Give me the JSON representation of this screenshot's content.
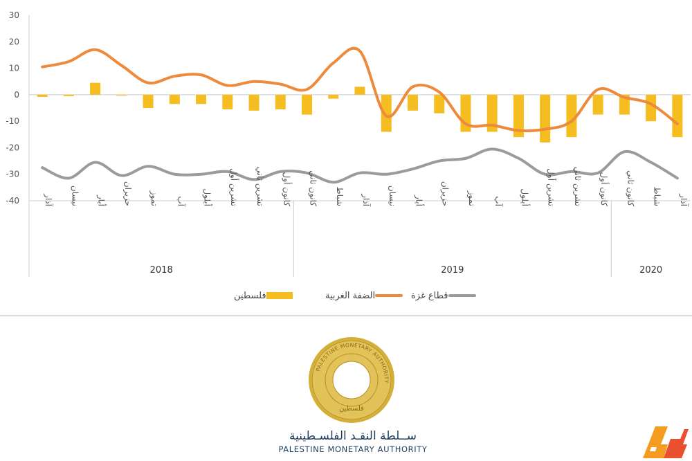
{
  "chart_data": {
    "type": "bar+line",
    "ylim": [
      -40,
      30
    ],
    "yticks": [
      30,
      20,
      10,
      0,
      -10,
      -20,
      -30,
      -40
    ],
    "categories": [
      "آذار",
      "نيسان",
      "أيار",
      "حزيران",
      "تموز",
      "آب",
      "أيلول",
      "تشرين أول",
      "تشرين ثاني",
      "كانون أول",
      "كانون ثاني",
      "شباط",
      "آذار",
      "نيسان",
      "أيار",
      "حزيران",
      "تموز",
      "آب",
      "أيلول",
      "تشرين أول",
      "تشرين ثاني",
      "كانون أول",
      "كانون ثاني",
      "شباط",
      "آذار"
    ],
    "year_groups": [
      {
        "label": "2018",
        "start": 0,
        "end": 9
      },
      {
        "label": "2019",
        "start": 10,
        "end": 21
      },
      {
        "label": "2020",
        "start": 22,
        "end": 24
      }
    ],
    "series": [
      {
        "name": "فلسطين",
        "type": "bar",
        "color": "#f5bd1f",
        "values": [
          -0.8,
          -0.5,
          4.5,
          -0.3,
          -5,
          -3.5,
          -3.5,
          -5.5,
          -6,
          -5.5,
          -7.5,
          -1.5,
          3,
          -14,
          -6,
          -7,
          -14,
          -14,
          -16,
          -18,
          -16,
          -7.5,
          -7.5,
          -10,
          -16
        ]
      },
      {
        "name": "الضفة الغربية",
        "type": "line",
        "color": "#ed8a3c",
        "values": [
          10.5,
          12.5,
          17,
          11,
          4.5,
          7,
          7.5,
          3.5,
          5,
          4,
          2,
          12,
          16.5,
          -8,
          3,
          1,
          -11,
          -11.5,
          -13.5,
          -13,
          -10,
          2,
          -1,
          -3.5,
          -11
        ]
      },
      {
        "name": "قطاع غزة",
        "type": "line",
        "color": "#9b9b9b",
        "values": [
          -27.5,
          -31.5,
          -25.5,
          -30.5,
          -27,
          -30,
          -30,
          -29,
          -32,
          -29,
          -29.5,
          -33,
          -29.5,
          -30,
          -28,
          -25,
          -24,
          -20.5,
          -24,
          -30,
          -29,
          -29.5,
          -21.5,
          -25.5,
          -31.5
        ]
      }
    ]
  },
  "legend": {
    "palestine": "فلسطين",
    "west_bank": "الضفة الغربية",
    "gaza": "قطاع غزة"
  },
  "org": {
    "name_ar": "ســلطة النقـد الفلسـطينية",
    "name_en": "PALESTINE MONETARY AUTHORITY",
    "seal_text_en": "PALESTINE MONETARY AUTHORITY",
    "seal_text_ar": "سلطة النقد الفلسطينية",
    "seal_center_ar": "فلسطين",
    "seal_color": "#c9a227"
  },
  "watermark": {
    "colors": [
      "#f39c1f",
      "#e8502f"
    ]
  }
}
